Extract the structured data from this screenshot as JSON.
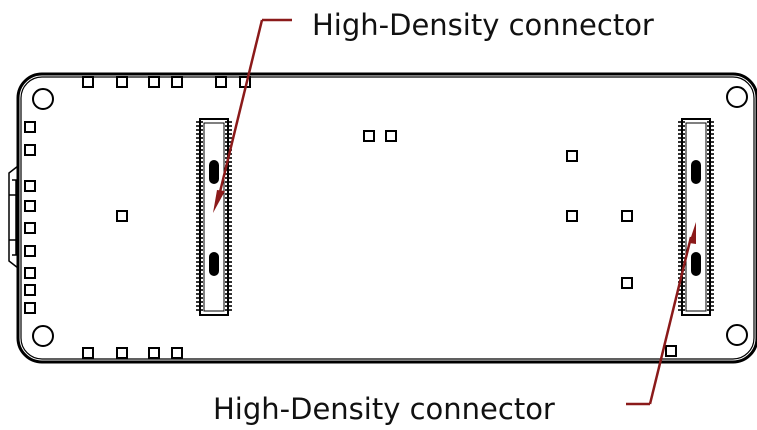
{
  "colors": {
    "board_outline": "#000000",
    "leader": "#8b1a1a",
    "label_text": "#111111",
    "background": "#ffffff"
  },
  "callouts": {
    "top": {
      "label": "High-Density connector"
    },
    "bottom": {
      "label": "High-Density connector"
    }
  },
  "board": {
    "connectors": [
      {
        "name": "left-high-density-connector"
      },
      {
        "name": "right-high-density-connector"
      }
    ]
  }
}
